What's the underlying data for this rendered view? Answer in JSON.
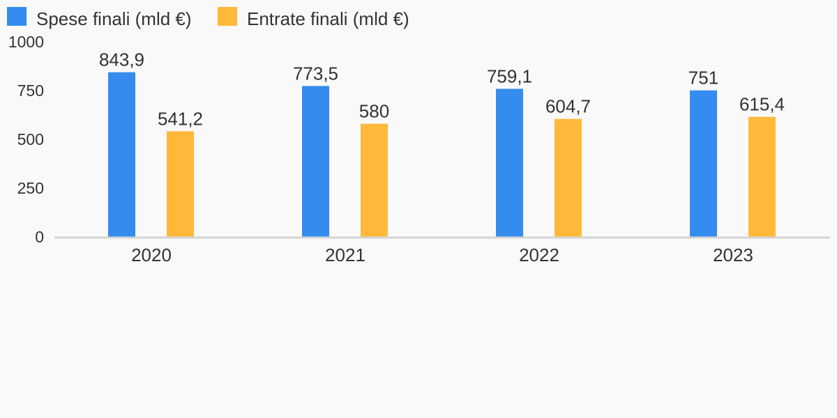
{
  "chart_data": {
    "type": "bar",
    "title": "",
    "xlabel": "",
    "ylabel": "",
    "categories": [
      "2020",
      "2021",
      "2022",
      "2023"
    ],
    "series": [
      {
        "name": "Spese finali (mld €)",
        "color": "#348cee",
        "values": [
          843.9,
          773.5,
          759.1,
          751
        ],
        "labels": [
          "843,9",
          "773,5",
          "759,1",
          "751"
        ]
      },
      {
        "name": "Entrate finali (mld €)",
        "color": "#ffb93a",
        "values": [
          541.2,
          580,
          604.7,
          615.4
        ],
        "labels": [
          "541,2",
          "580",
          "604,7",
          "615,4"
        ]
      }
    ],
    "ylim": [
      0,
      1000
    ],
    "yticks": [
      0,
      250,
      500,
      750,
      1000
    ],
    "ytick_labels": [
      "0",
      "250",
      "500",
      "750",
      "1000"
    ],
    "grid": false,
    "legend_position": "top-left",
    "axis_color": "#d4d4d4"
  }
}
